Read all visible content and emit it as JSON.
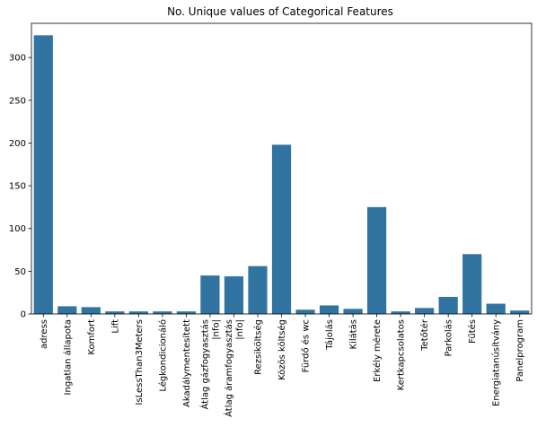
{
  "chart_data": {
    "type": "bar",
    "title": "No. Unique values of Categorical Features",
    "xlabel": "",
    "ylabel": "",
    "ylim": [
      0,
      340
    ],
    "yticks": [
      0,
      50,
      100,
      150,
      200,
      250,
      300
    ],
    "grid": false,
    "bar_color": "#3274a1",
    "categories": [
      "adress",
      "Ingatlan állapota",
      "Komfort",
      "Lift",
      "IsLessThan3Meters",
      "Légkondicionáló",
      "Akadálymentesített",
      "Átlag gázfogyasztás\n|nfo|",
      "Átlag áramfogyasztás\n|nfo|",
      "Rezsiköltség",
      "Közös költség",
      "Fürdő és wc",
      "Tájolás",
      "Kilátás",
      "Erkély mérete",
      "Kertkapcsolatos",
      "Tetőtér",
      "Parkolás",
      "Fűtés",
      "Energiatanúsítvány",
      "Panelprogram"
    ],
    "values": [
      326,
      9,
      8,
      3,
      3,
      3,
      3,
      45,
      44,
      56,
      198,
      5,
      10,
      6,
      125,
      3,
      7,
      20,
      70,
      12,
      4
    ]
  }
}
